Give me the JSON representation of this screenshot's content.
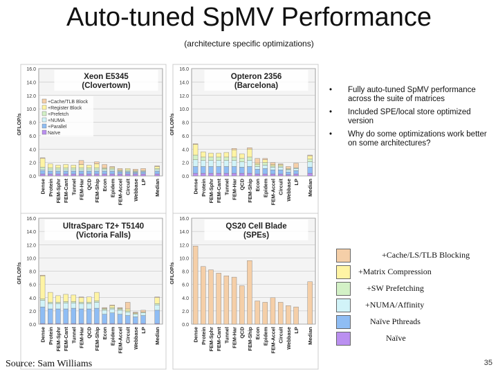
{
  "title": "Auto-tuned SpMV Performance",
  "subtitle": "(architecture specific optimizations)",
  "bullets": [
    "Fully auto-tuned SpMV performance across the suite of matrices",
    "Included SPE/local store optimized version",
    "Why do some optimizations work better on some architectures?"
  ],
  "legend": [
    {
      "label": "+Cache/LS/TLB Blocking",
      "color": "#f5cfa8"
    },
    {
      "label": "+Matrix Compression",
      "color": "#fff4a4"
    },
    {
      "label": "+SW Prefetching",
      "color": "#d3f1c6"
    },
    {
      "label": "+NUMA/Affinity",
      "color": "#d1f3f8"
    },
    {
      "label": "Naïve Pthreads",
      "color": "#8fbdf4"
    },
    {
      "label": "Naïve",
      "color": "#ba8ff0"
    }
  ],
  "source": "Source: Sam Williams",
  "page_number": "35",
  "chart_data": [
    {
      "type": "bar",
      "title": "Xeon E5345",
      "subtitle": "(Clovertown)",
      "ylabel": "GFLOP/s",
      "ylim": [
        0,
        16
      ],
      "yticks": [
        "0.0",
        "2.0",
        "4.0",
        "6.0",
        "8.0",
        "10.0",
        "12.0",
        "14.0",
        "16.0"
      ],
      "categories": [
        "Dense",
        "Protein",
        "FEM-Sphr",
        "FEM-Cant",
        "Tunnel",
        "FEM-Har",
        "QCD",
        "FEM-Ship",
        "Econ",
        "Epidem",
        "FEM-Accel",
        "Circuit",
        "Webbase",
        "LP",
        "Median"
      ],
      "legend": [
        {
          "label": "+Cache/TLB Block",
          "color": "#f5cfa8"
        },
        {
          "label": "+Register Block",
          "color": "#fff4a4"
        },
        {
          "label": "+Prefetch",
          "color": "#d3f1c6"
        },
        {
          "label": "+NUMA",
          "color": "#d1f3f8"
        },
        {
          "label": "+Parallel",
          "color": "#8fbdf4"
        },
        {
          "label": "Naïve",
          "color": "#ba8ff0"
        }
      ],
      "series": [
        {
          "name": "Naïve",
          "color": "#ba8ff0",
          "values": [
            0.3,
            0.3,
            0.3,
            0.3,
            0.3,
            0.3,
            0.3,
            0.3,
            0.3,
            0.3,
            0.3,
            0.3,
            0.3,
            0.3,
            0.3
          ]
        },
        {
          "name": "+Parallel",
          "color": "#8fbdf4",
          "values": [
            0.5,
            0.4,
            0.4,
            0.4,
            0.4,
            0.4,
            0.4,
            0.4,
            0.4,
            0.4,
            0.3,
            0.3,
            0.2,
            0.3,
            0.4
          ]
        },
        {
          "name": "+NUMA",
          "color": "#d1f3f8",
          "values": [
            0.2,
            0.2,
            0.2,
            0.2,
            0.2,
            0.2,
            0.2,
            0.2,
            0.2,
            0.2,
            0.1,
            0.1,
            0.1,
            0.1,
            0.2
          ]
        },
        {
          "name": "+Prefetch",
          "color": "#d3f1c6",
          "values": [
            0.3,
            0.3,
            0.3,
            0.3,
            0.3,
            0.3,
            0.3,
            0.3,
            0.2,
            0.2,
            0.1,
            0.2,
            0.1,
            0.1,
            0.2
          ]
        },
        {
          "name": "+Register Block",
          "color": "#fff4a4",
          "values": [
            1.3,
            0.6,
            0.4,
            0.5,
            0.4,
            0.5,
            0.4,
            0.6,
            0.1,
            0.2,
            0.1,
            0.2,
            0.1,
            0.0,
            0.3
          ]
        },
        {
          "name": "+Cache/TLB Block",
          "color": "#f5cfa8",
          "values": [
            0.1,
            0.0,
            0.0,
            0.0,
            0.0,
            0.6,
            0.0,
            0.3,
            0.5,
            0.1,
            0.2,
            0.0,
            0.2,
            0.3,
            0.1
          ]
        }
      ]
    },
    {
      "type": "bar",
      "title": "Opteron 2356",
      "subtitle": "(Barcelona)",
      "ylabel": "GFLOP/s",
      "ylim": [
        0,
        16
      ],
      "yticks": [
        "0.0",
        "2.0",
        "4.0",
        "6.0",
        "8.0",
        "10.0",
        "12.0",
        "14.0",
        "16.0"
      ],
      "categories": [
        "Dense",
        "Protein",
        "FEM-Sphr",
        "FEM-Cant",
        "Tunnel",
        "FEM-Har",
        "QCD",
        "FEM-Ship",
        "Econ",
        "Epidem",
        "FEM-Accel",
        "Circuit",
        "Webbase",
        "LP",
        "Median"
      ],
      "legend": [],
      "series": [
        {
          "name": "Naïve",
          "color": "#ba8ff0",
          "values": [
            0.4,
            0.4,
            0.4,
            0.4,
            0.4,
            0.4,
            0.4,
            0.4,
            0.3,
            0.3,
            0.3,
            0.3,
            0.2,
            0.3,
            0.4
          ]
        },
        {
          "name": "+Parallel",
          "color": "#8fbdf4",
          "values": [
            1.0,
            1.0,
            1.0,
            1.0,
            1.0,
            1.0,
            0.9,
            1.0,
            0.7,
            0.8,
            0.6,
            0.6,
            0.4,
            0.5,
            0.9
          ]
        },
        {
          "name": "+NUMA",
          "color": "#d1f3f8",
          "values": [
            1.0,
            0.9,
            0.9,
            0.9,
            0.9,
            0.9,
            0.8,
            0.9,
            0.4,
            0.5,
            0.4,
            0.4,
            0.3,
            0.3,
            0.8
          ]
        },
        {
          "name": "+Prefetch",
          "color": "#d3f1c6",
          "values": [
            0.7,
            0.5,
            0.5,
            0.5,
            0.5,
            0.5,
            0.5,
            0.5,
            0.3,
            0.4,
            0.2,
            0.2,
            0.1,
            0.1,
            0.4
          ]
        },
        {
          "name": "+Register Block",
          "color": "#fff4a4",
          "values": [
            1.6,
            0.8,
            0.6,
            0.6,
            0.7,
            1.1,
            0.7,
            1.2,
            0.2,
            0.4,
            0.2,
            0.2,
            0.1,
            0.0,
            0.5
          ]
        },
        {
          "name": "+Cache/TLB Block",
          "color": "#f5cfa8",
          "values": [
            0.1,
            0.0,
            0.0,
            0.0,
            0.0,
            0.2,
            0.0,
            0.2,
            0.7,
            0.2,
            0.3,
            0.1,
            0.3,
            0.7,
            0.1
          ]
        }
      ]
    },
    {
      "type": "bar",
      "title": "UltraSparc T2+ T5140",
      "subtitle": "(Victoria Falls)",
      "ylabel": "GFLOP/s",
      "ylim": [
        0,
        16
      ],
      "yticks": [
        "0.0",
        "2.0",
        "4.0",
        "6.0",
        "8.0",
        "10.0",
        "12.0",
        "14.0",
        "16.0"
      ],
      "categories": [
        "Dense",
        "Protein",
        "FEM-Sphr",
        "FEM-Cant",
        "Tunnel",
        "FEM-Har",
        "QCD",
        "FEM-Ship",
        "Econ",
        "Epidem",
        "FEM-Accel",
        "Circuit",
        "Webbase",
        "LP",
        "Median"
      ],
      "legend": [],
      "series": [
        {
          "name": "Naïve",
          "color": "#ba8ff0",
          "values": [
            0.1,
            0.1,
            0.1,
            0.1,
            0.1,
            0.1,
            0.1,
            0.1,
            0.1,
            0.1,
            0.1,
            0.1,
            0.1,
            0.1,
            0.1
          ]
        },
        {
          "name": "+Parallel",
          "color": "#8fbdf4",
          "values": [
            2.5,
            2.2,
            2.2,
            2.2,
            2.3,
            2.2,
            2.2,
            2.3,
            1.4,
            1.6,
            1.4,
            1.2,
            1.0,
            1.2,
            2.0
          ]
        },
        {
          "name": "+NUMA",
          "color": "#d1f3f8",
          "values": [
            1.0,
            0.8,
            0.8,
            0.9,
            0.8,
            0.8,
            0.8,
            0.9,
            0.6,
            0.6,
            0.6,
            0.5,
            0.4,
            0.4,
            0.8
          ]
        },
        {
          "name": "+Prefetch",
          "color": "#d3f1c6",
          "values": [
            0.2,
            0.2,
            0.2,
            0.2,
            0.2,
            0.2,
            0.2,
            0.2,
            0.2,
            0.2,
            0.2,
            0.2,
            0.1,
            0.1,
            0.2
          ]
        },
        {
          "name": "+Register Block",
          "color": "#fff4a4",
          "values": [
            3.5,
            1.5,
            1.0,
            1.1,
            1.0,
            0.7,
            0.8,
            1.3,
            0.1,
            0.3,
            0.1,
            0.3,
            0.1,
            0.0,
            0.9
          ]
        },
        {
          "name": "+Cache/TLB Block",
          "color": "#f5cfa8",
          "values": [
            0.1,
            0.0,
            0.0,
            0.0,
            0.0,
            0.1,
            0.0,
            0.0,
            0.1,
            0.1,
            0.1,
            1.0,
            0.1,
            0.3,
            0.1
          ]
        }
      ]
    },
    {
      "type": "bar",
      "title": "QS20 Cell Blade",
      "subtitle": "(SPEs)",
      "ylabel": "GFLOP/s",
      "ylim": [
        0,
        16
      ],
      "yticks": [
        "0.0",
        "2.0",
        "4.0",
        "6.0",
        "8.0",
        "10.0",
        "12.0",
        "14.0",
        "16.0"
      ],
      "categories": [
        "Dense",
        "Protein",
        "FEM-Sphr",
        "FEM-Cant",
        "Tunnel",
        "FEM-Har",
        "QCD",
        "FEM-Ship",
        "Econ",
        "Epidem",
        "FEM-Accel",
        "Circuit",
        "Webbase",
        "LP",
        "Median"
      ],
      "legend": [],
      "series": [
        {
          "name": "+Cache/LS/TLB Blocking",
          "color": "#f5cfa8",
          "values": [
            11.8,
            8.7,
            8.2,
            7.7,
            7.3,
            7.1,
            5.8,
            9.6,
            3.5,
            3.3,
            4.0,
            3.3,
            2.8,
            2.6,
            6.4
          ]
        }
      ]
    }
  ]
}
